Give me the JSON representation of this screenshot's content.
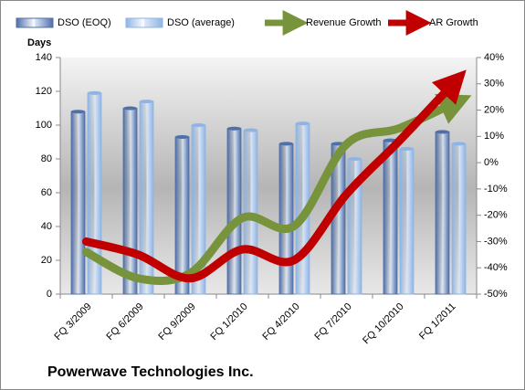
{
  "chart_data": {
    "type": "bar-line",
    "title": "Powerwave Technologies Inc.",
    "y_label": "Days",
    "categories": [
      "FQ 3/2009",
      "FQ 6/2009",
      "FQ 9/2009",
      "FQ 1/2010",
      "FQ 4/2010",
      "FQ 7/2010",
      "FQ 10/2010",
      "FQ 1/2011"
    ],
    "series": [
      {
        "name": "DSO (EOQ)",
        "color": "#4f6fa8",
        "type": "bar",
        "values": [
          108,
          110,
          93,
          98,
          89,
          89,
          91,
          96
        ]
      },
      {
        "name": "DSO (average)",
        "color": "#8fb4e3",
        "type": "bar",
        "values": [
          119,
          114,
          100,
          97,
          101,
          80,
          86,
          89
        ]
      },
      {
        "name": "Revenue Growth",
        "color": "#77933c",
        "type": "line",
        "axis": "y2",
        "values": [
          -34,
          -44,
          -42,
          -21,
          -24,
          7,
          13,
          22
        ]
      },
      {
        "name": "AR Growth",
        "color": "#c00000",
        "type": "line",
        "axis": "y2",
        "values": [
          -30,
          -35,
          -44,
          -33,
          -37,
          -12,
          8,
          29
        ]
      }
    ],
    "ylim": [
      0,
      140
    ],
    "yticks": [
      0,
      20,
      40,
      60,
      80,
      100,
      120,
      140
    ],
    "y2lim": [
      -50,
      40
    ],
    "y2ticks": [
      {
        "value": -50,
        "label": "-50%"
      },
      {
        "value": -40,
        "label": "-40%"
      },
      {
        "value": -30,
        "label": "-30%"
      },
      {
        "value": -20,
        "label": "-20%"
      },
      {
        "value": -10,
        "label": "-10%"
      },
      {
        "value": 0,
        "label": "0%"
      },
      {
        "value": 10,
        "label": "10%"
      },
      {
        "value": 20,
        "label": "20%"
      },
      {
        "value": 30,
        "label": "30%"
      },
      {
        "value": 40,
        "label": "40%"
      }
    ],
    "legend": "top"
  }
}
